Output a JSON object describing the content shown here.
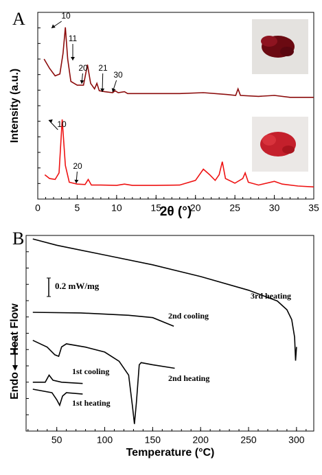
{
  "chart_data": [
    {
      "type": "line",
      "panel_label": "A",
      "xlabel": "2θ (°)",
      "ylabel": "Intensity (a.u.)",
      "xlim": [
        0,
        35
      ],
      "xticks": [
        0,
        5,
        10,
        15,
        20,
        25,
        30,
        35
      ],
      "ylim": [
        0,
        100
      ],
      "series": [
        {
          "color": "#8b0a0a",
          "x": [
            0.8,
            1.5,
            2.2,
            2.8,
            3.2,
            3.5,
            3.8,
            4.2,
            5,
            5.8,
            6.3,
            6.7,
            7.2,
            7.5,
            7.8,
            8.5,
            9.5,
            9.8,
            10.2,
            11,
            11.4,
            13,
            15,
            18,
            21,
            24,
            25.1,
            25.4,
            25.7,
            28,
            30,
            32,
            35
          ],
          "values": [
            75,
            70,
            66,
            67,
            78,
            92,
            75,
            63,
            61,
            61,
            72,
            62,
            59,
            62,
            58,
            57.5,
            57,
            58,
            57,
            57.5,
            56.5,
            56.5,
            56.5,
            56.5,
            57,
            56,
            55.5,
            59,
            55.5,
            55,
            55.5,
            54.5,
            54.5
          ]
        },
        {
          "color": "#ee1111",
          "x": [
            0.9,
            1.5,
            2.2,
            2.7,
            3.1,
            3.5,
            4,
            5,
            6,
            6.4,
            6.8,
            8,
            10,
            11,
            12,
            15,
            18,
            20,
            21,
            21.8,
            22.5,
            23,
            23.4,
            23.8,
            25,
            26,
            26.3,
            26.7,
            28,
            30,
            31,
            33,
            35
          ],
          "values": [
            13,
            11,
            10.5,
            14,
            42.6,
            18,
            9,
            8,
            7.8,
            10.5,
            7.5,
            7.5,
            7.3,
            8,
            7.3,
            7.3,
            7.5,
            10,
            16,
            13,
            10,
            13,
            20,
            11,
            8.5,
            11,
            14,
            9,
            7.5,
            9.5,
            8,
            7,
            6.5
          ]
        }
      ],
      "annotations": [
        "10",
        "11",
        "20",
        "21",
        "30",
        "10",
        "20"
      ]
    },
    {
      "type": "line",
      "panel_label": "B",
      "xlabel": "Temperature (°C)",
      "ylabel": "Heat Flow",
      "ylabel_direction": "Endo",
      "xlim": [
        18,
        318
      ],
      "xticks": [
        50,
        100,
        150,
        200,
        250,
        300
      ],
      "ylim": [
        0,
        100
      ],
      "annotations": [
        "0.2 mW/mg"
      ],
      "series": [
        {
          "name": "3rd heating",
          "color": "#000000",
          "x": [
            25,
            50,
            100,
            150,
            200,
            250,
            280,
            290,
            295,
            298,
            299,
            300
          ],
          "values": [
            98.2,
            95,
            90,
            85,
            79,
            72,
            66.5,
            62,
            57,
            48,
            36,
            43
          ]
        },
        {
          "name": "2nd cooling",
          "color": "#000000",
          "x": [
            25,
            75,
            125,
            150,
            172
          ],
          "values": [
            60.7,
            60.4,
            59.2,
            58,
            53.6
          ]
        },
        {
          "name": "2nd heating",
          "color": "#000000",
          "x": [
            25,
            40,
            48,
            52,
            55,
            60,
            80,
            100,
            115,
            125,
            129,
            131,
            133,
            136,
            138,
            150,
            173
          ],
          "values": [
            46.4,
            42.9,
            39,
            38.2,
            43,
            44.6,
            42.9,
            40.4,
            35.7,
            28.6,
            12.5,
            3.6,
            14.3,
            33.9,
            35,
            33.9,
            32.1
          ]
        },
        {
          "name": "1st cooling",
          "color": "#000000",
          "x": [
            25,
            38,
            42,
            46,
            55,
            77
          ],
          "values": [
            25,
            25,
            28.6,
            26,
            25,
            24.3
          ]
        },
        {
          "name": "1st heating",
          "color": "#000000",
          "x": [
            25,
            45,
            50,
            53,
            56,
            60,
            77
          ],
          "values": [
            21.4,
            19.6,
            16,
            13.2,
            17.9,
            19.6,
            18.9
          ]
        }
      ]
    }
  ]
}
